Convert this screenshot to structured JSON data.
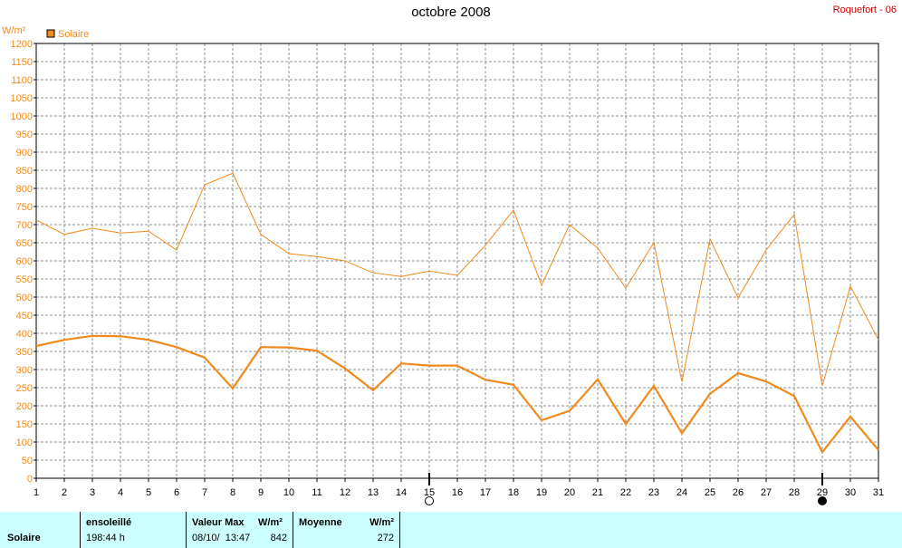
{
  "chart_data": {
    "type": "line",
    "title": "octobre 2008",
    "ylabel": "W/m²",
    "ylim": [
      0,
      1200
    ],
    "y_ticks": [
      0,
      50,
      100,
      150,
      200,
      250,
      300,
      350,
      400,
      450,
      500,
      550,
      600,
      650,
      700,
      750,
      800,
      850,
      900,
      950,
      1000,
      1050,
      1100,
      1150,
      1200
    ],
    "x": [
      1,
      2,
      3,
      4,
      5,
      6,
      7,
      8,
      9,
      10,
      11,
      12,
      13,
      14,
      15,
      16,
      17,
      18,
      19,
      20,
      21,
      22,
      23,
      24,
      25,
      26,
      27,
      28,
      29,
      30,
      31
    ],
    "xlim": [
      1,
      31
    ],
    "grid": true,
    "legend": "top-left",
    "series": [
      {
        "name": "Solaire",
        "color": "#f08a1c",
        "values": [
          365,
          382,
          393,
          392,
          382,
          362,
          333,
          248,
          362,
          361,
          352,
          303,
          243,
          317,
          311,
          311,
          272,
          258,
          160,
          186,
          273,
          150,
          255,
          124,
          233,
          290,
          267,
          227,
          72,
          170,
          78
        ]
      },
      {
        "color": "#f08a1c",
        "values": [
          713,
          673,
          690,
          677,
          682,
          630,
          810,
          842,
          673,
          620,
          612,
          600,
          567,
          557,
          572,
          560,
          643,
          740,
          533,
          700,
          635,
          525,
          650,
          266,
          660,
          498,
          630,
          728,
          255,
          530,
          382
        ]
      }
    ],
    "moon_markers": [
      {
        "day": 15,
        "phase": "full-moon"
      },
      {
        "day": 29,
        "phase": "new-moon"
      }
    ]
  },
  "station": "Roquefort - 06",
  "stats": {
    "row_label": "Solaire",
    "sunshine_header": "ensoleillé",
    "sunshine_value": "198:44 h",
    "max_header": "Valeur Max",
    "max_unit": "W/m²",
    "max_date": "08/10/  13:47",
    "max_value": "842",
    "mean_header": "Moyenne",
    "mean_unit": "W/m²",
    "mean_value": "272"
  }
}
